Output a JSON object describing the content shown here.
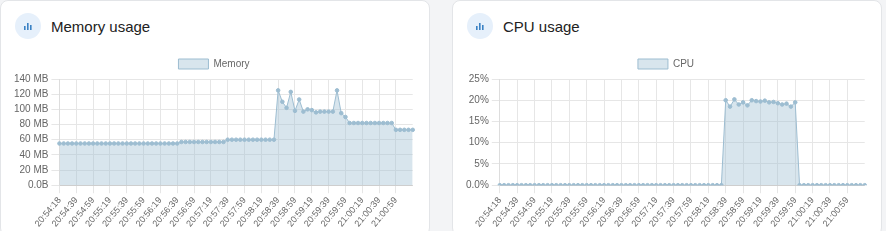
{
  "chart_data": [
    {
      "type": "area",
      "title": "Memory usage",
      "categories": [
        "20:54:18",
        null,
        null,
        null,
        "20:54:39",
        null,
        null,
        null,
        "20:54:59",
        null,
        null,
        null,
        "20:55:19",
        null,
        null,
        null,
        "20:55:39",
        null,
        null,
        null,
        "20:55:59",
        null,
        null,
        null,
        "20:56:19",
        null,
        null,
        null,
        "20:56:39",
        null,
        null,
        null,
        "20:56:59",
        null,
        null,
        null,
        "20:57:19",
        null,
        null,
        null,
        "20:57:39",
        null,
        null,
        null,
        "20:57:59",
        null,
        null,
        null,
        "20:58:19",
        null,
        null,
        null,
        "20:58:39",
        null,
        null,
        null,
        "20:58:59",
        null,
        null,
        null,
        "20:59:19",
        null,
        null,
        null,
        "20:59:39",
        null,
        null,
        null,
        "20:59:59",
        null,
        null,
        null,
        "21:00:19",
        null,
        null,
        null,
        "21:00:39",
        null,
        null,
        null,
        "21:00:59",
        null,
        null,
        null,
        null
      ],
      "series": [
        {
          "name": "Memory",
          "color": "#9dbdd1",
          "marker": "circle",
          "values": [
            55,
            55,
            55,
            55,
            55,
            55,
            55,
            55,
            55,
            55,
            55,
            55,
            55,
            55,
            55,
            55,
            55,
            55,
            55,
            55,
            55,
            55,
            55,
            55,
            55,
            55,
            55,
            55,
            55,
            57,
            57,
            57,
            57,
            57,
            57,
            57,
            57,
            57,
            57,
            57,
            60,
            60,
            60,
            60,
            60,
            60,
            60,
            60,
            60,
            60,
            60,
            60,
            125,
            110,
            102,
            123,
            98,
            113,
            97,
            100,
            99,
            96,
            97,
            97,
            97,
            97,
            125,
            95,
            90,
            82,
            82,
            82,
            82,
            82,
            82,
            82,
            82,
            82,
            82,
            82,
            73,
            73,
            73,
            73,
            73
          ]
        }
      ],
      "ylim": [
        0,
        140
      ],
      "yticks": [
        {
          "value": 0,
          "label": "0.0B"
        },
        {
          "value": 20,
          "label": "20 MB"
        },
        {
          "value": 40,
          "label": "40 MB"
        },
        {
          "value": 60,
          "label": "60 MB"
        },
        {
          "value": 80,
          "label": "80 MB"
        },
        {
          "value": 100,
          "label": "100 MB"
        },
        {
          "value": 120,
          "label": "120 MB"
        },
        {
          "value": 140,
          "label": "140 MB"
        }
      ],
      "grid": true,
      "legend": "top"
    },
    {
      "type": "area",
      "title": "CPU usage",
      "categories": [
        "20:54:18",
        null,
        null,
        null,
        "20:54:39",
        null,
        null,
        null,
        "20:54:59",
        null,
        null,
        null,
        "20:55:19",
        null,
        null,
        null,
        "20:55:39",
        null,
        null,
        null,
        "20:55:59",
        null,
        null,
        null,
        "20:56:19",
        null,
        null,
        null,
        "20:56:39",
        null,
        null,
        null,
        "20:56:59",
        null,
        null,
        null,
        "20:57:19",
        null,
        null,
        null,
        "20:57:39",
        null,
        null,
        null,
        "20:57:59",
        null,
        null,
        null,
        "20:58:19",
        null,
        null,
        null,
        "20:58:39",
        null,
        null,
        null,
        "20:58:59",
        null,
        null,
        null,
        "20:59:19",
        null,
        null,
        null,
        "20:59:39",
        null,
        null,
        null,
        "20:59:59",
        null,
        null,
        null,
        "21:00:19",
        null,
        null,
        null,
        "21:00:39",
        null,
        null,
        null,
        "21:00:59",
        null,
        null,
        null,
        null
      ],
      "series": [
        {
          "name": "CPU",
          "color": "#9dbdd1",
          "marker": "circle",
          "values": [
            0,
            0,
            0,
            0,
            0,
            0,
            0,
            0,
            0,
            0,
            0,
            0,
            0,
            0,
            0,
            0,
            0,
            0,
            0,
            0,
            0,
            0,
            0,
            0,
            0,
            0,
            0,
            0,
            0,
            0,
            0,
            0,
            0,
            0,
            0,
            0,
            0,
            0,
            0,
            0,
            0,
            0,
            0,
            0,
            0,
            0,
            0,
            0,
            0,
            0,
            0,
            0,
            20,
            18.5,
            20.2,
            19,
            19.5,
            18.8,
            20,
            19.8,
            19.7,
            19.9,
            19.5,
            19.6,
            19.3,
            19,
            19.2,
            18.5,
            19.5,
            0,
            0,
            0,
            0,
            0,
            0,
            0,
            0,
            0,
            0,
            0,
            0,
            0,
            0,
            0,
            0
          ]
        }
      ],
      "ylim": [
        0,
        25
      ],
      "yticks": [
        {
          "value": 0,
          "label": "0.0%"
        },
        {
          "value": 5,
          "label": "5%"
        },
        {
          "value": 10,
          "label": "10%"
        },
        {
          "value": 15,
          "label": "15%"
        },
        {
          "value": 20,
          "label": "20%"
        },
        {
          "value": 25,
          "label": "25%"
        }
      ],
      "grid": true,
      "legend": "top"
    }
  ]
}
